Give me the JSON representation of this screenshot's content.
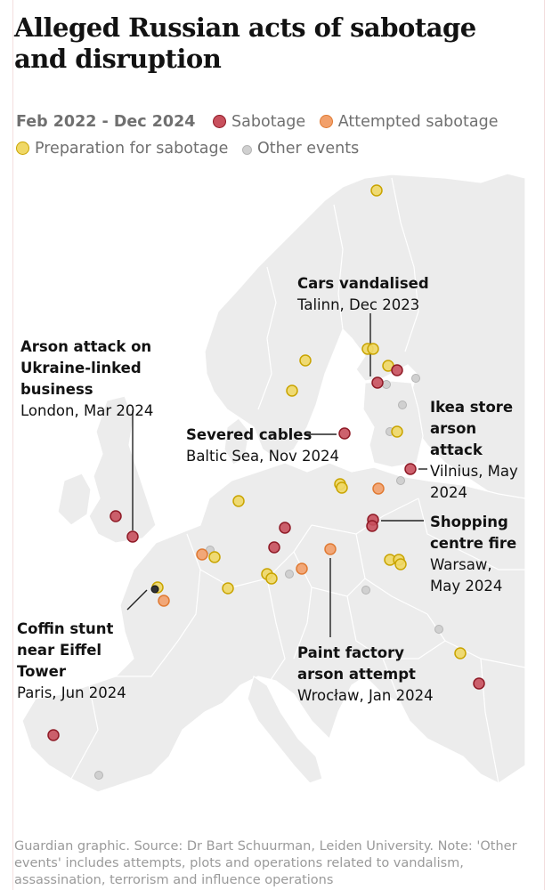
{
  "title": "Alleged Russian acts of sabotage and disruption",
  "legend": {
    "period": "Feb 2022 - Dec 2024",
    "items": [
      {
        "label": "Sabotage",
        "category": "sabotage"
      },
      {
        "label": "Attempted sabotage",
        "category": "attempted"
      },
      {
        "label": "Preparation for sabotage",
        "category": "preparation"
      },
      {
        "label": "Other events",
        "category": "other"
      }
    ]
  },
  "colors": {
    "map_background": "#ffffff",
    "land": "#ececec",
    "borders": "#ffffff",
    "sabotage_fill": "#c8505d",
    "sabotage_stroke": "#8f1a26",
    "attempted_fill": "#f2a06b",
    "attempted_stroke": "#e07a33",
    "preparation_fill": "#f0d866",
    "preparation_stroke": "#c9a400",
    "other_fill": "#d0d0d0",
    "other_stroke": "#b5b5b5"
  },
  "annotations": [
    {
      "id": "london",
      "headline": "Arson attack on Ukraine-linked business",
      "place": "London, Mar 2024"
    },
    {
      "id": "tallinn",
      "headline": "Cars vandalised",
      "place": "Talinn, Dec 2023"
    },
    {
      "id": "baltic",
      "headline": "Severed cables",
      "place": "Baltic Sea, Nov 2024"
    },
    {
      "id": "vilnius",
      "headline": "Ikea store arson attack",
      "place": "Vilnius, May 2024"
    },
    {
      "id": "warsaw",
      "headline": "Shopping centre fire",
      "place": "Warsaw, May 2024"
    },
    {
      "id": "paris",
      "headline": "Coffin stunt near Eiffel Tower",
      "place": "Paris, Jun 2024"
    },
    {
      "id": "wroclaw",
      "headline": "Paint factory arson attempt",
      "place": "Wrocław, Jan 2024"
    }
  ],
  "footer": "Guardian graphic. Source: Dr Bart Schuurman, Leiden University. Note: 'Other events' includes attempts, plots and operations related to vandalism, assassination, terrorism and influence operations"
}
